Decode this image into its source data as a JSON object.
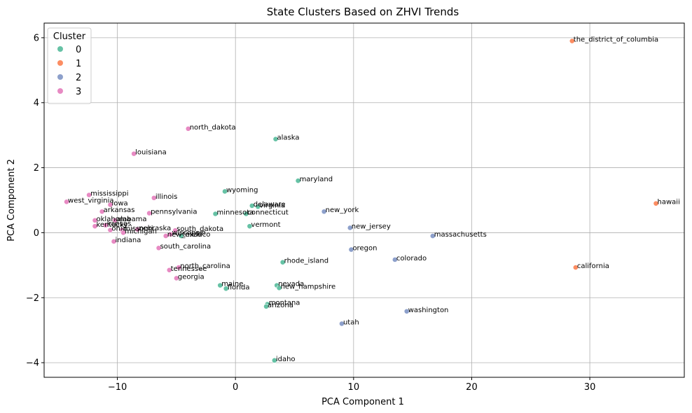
{
  "chart_data": {
    "type": "scatter",
    "title": "State Clusters Based on ZHVI Trends",
    "xlabel": "PCA Component 1",
    "ylabel": "PCA Component 2",
    "xlim": [
      -16.2,
      38.0
    ],
    "ylim": [
      -4.45,
      6.45
    ],
    "xticks": [
      -10,
      0,
      10,
      20,
      30
    ],
    "xtick_labels": [
      "−10",
      "0",
      "10",
      "20",
      "30"
    ],
    "yticks": [
      -4,
      -2,
      0,
      2,
      4,
      6
    ],
    "ytick_labels": [
      "−4",
      "−2",
      "0",
      "2",
      "4",
      "6"
    ],
    "grid": true,
    "legend": {
      "title": "Cluster",
      "placement": "top-left",
      "entries": [
        {
          "label": "0",
          "color": "#66c2a5"
        },
        {
          "label": "1",
          "color": "#fc8d62"
        },
        {
          "label": "2",
          "color": "#8da0cb"
        },
        {
          "label": "3",
          "color": "#e78ac3"
        }
      ]
    },
    "points": [
      {
        "label": "the_district_of_columbia",
        "x": 28.5,
        "y": 5.9,
        "cluster": 1
      },
      {
        "label": "hawaii",
        "x": 35.6,
        "y": 0.9,
        "cluster": 1
      },
      {
        "label": "california",
        "x": 28.8,
        "y": -1.07,
        "cluster": 1
      },
      {
        "label": "north_dakota",
        "x": -4.0,
        "y": 3.2,
        "cluster": 3
      },
      {
        "label": "louisiana",
        "x": -8.6,
        "y": 2.43,
        "cluster": 3
      },
      {
        "label": "mississippi",
        "x": -12.4,
        "y": 1.16,
        "cluster": 3
      },
      {
        "label": "west_virginia",
        "x": -14.3,
        "y": 0.95,
        "cluster": 3
      },
      {
        "label": "illinois",
        "x": -6.9,
        "y": 1.07,
        "cluster": 3
      },
      {
        "label": "iowa",
        "x": -10.6,
        "y": 0.86,
        "cluster": 3
      },
      {
        "label": "arkansas",
        "x": -11.3,
        "y": 0.65,
        "cluster": 3
      },
      {
        "label": "pennsylvania",
        "x": -7.3,
        "y": 0.6,
        "cluster": 3
      },
      {
        "label": "oklahoma",
        "x": -11.9,
        "y": 0.38,
        "cluster": 3
      },
      {
        "label": "alabama",
        "x": -10.2,
        "y": 0.38,
        "cluster": 3
      },
      {
        "label": "kentucky",
        "x": -11.9,
        "y": 0.2,
        "cluster": 3
      },
      {
        "label": "kansas",
        "x": -11.0,
        "y": 0.23,
        "cluster": 3
      },
      {
        "label": "ohio",
        "x": -10.6,
        "y": 0.08,
        "cluster": 3
      },
      {
        "label": "missouri",
        "x": -9.6,
        "y": 0.08,
        "cluster": 3
      },
      {
        "label": "michigan",
        "x": -9.5,
        "y": 0.0,
        "cluster": 3
      },
      {
        "label": "nebraska",
        "x": -8.3,
        "y": 0.1,
        "cluster": 3
      },
      {
        "label": "south_dakota",
        "x": -5.1,
        "y": 0.07,
        "cluster": 3
      },
      {
        "label": "wisconsin",
        "x": -5.5,
        "y": -0.05,
        "cluster": 3
      },
      {
        "label": "new_mexico",
        "x": -5.9,
        "y": -0.1,
        "cluster": 3
      },
      {
        "label": "texas",
        "x": -4.6,
        "y": -0.1,
        "cluster": 0
      },
      {
        "label": "indiana",
        "x": -10.3,
        "y": -0.27,
        "cluster": 3
      },
      {
        "label": "south_carolina",
        "x": -6.5,
        "y": -0.47,
        "cluster": 3
      },
      {
        "label": "north_carolina",
        "x": -4.8,
        "y": -1.07,
        "cluster": 3
      },
      {
        "label": "tennessee",
        "x": -5.6,
        "y": -1.15,
        "cluster": 3
      },
      {
        "label": "georgia",
        "x": -5.0,
        "y": -1.4,
        "cluster": 3
      },
      {
        "label": "alaska",
        "x": 3.4,
        "y": 2.88,
        "cluster": 0
      },
      {
        "label": "maryland",
        "x": 5.3,
        "y": 1.6,
        "cluster": 0
      },
      {
        "label": "wyoming",
        "x": -0.9,
        "y": 1.27,
        "cluster": 0
      },
      {
        "label": "delaware",
        "x": 1.4,
        "y": 0.83,
        "cluster": 0
      },
      {
        "label": "virginia",
        "x": 1.9,
        "y": 0.8,
        "cluster": 0
      },
      {
        "label": "minnesota",
        "x": -1.7,
        "y": 0.58,
        "cluster": 0
      },
      {
        "label": "connecticut",
        "x": 0.9,
        "y": 0.58,
        "cluster": 0
      },
      {
        "label": "vermont",
        "x": 1.2,
        "y": 0.2,
        "cluster": 0
      },
      {
        "label": "rhode_island",
        "x": 4.0,
        "y": -0.91,
        "cluster": 0
      },
      {
        "label": "maine",
        "x": -1.3,
        "y": -1.62,
        "cluster": 0
      },
      {
        "label": "florida",
        "x": -0.8,
        "y": -1.72,
        "cluster": 0
      },
      {
        "label": "nevada",
        "x": 3.5,
        "y": -1.62,
        "cluster": 0
      },
      {
        "label": "new_hampshire",
        "x": 3.7,
        "y": -1.7,
        "cluster": 0
      },
      {
        "label": "montana",
        "x": 2.7,
        "y": -2.2,
        "cluster": 0
      },
      {
        "label": "arizona",
        "x": 2.6,
        "y": -2.27,
        "cluster": 0
      },
      {
        "label": "idaho",
        "x": 3.3,
        "y": -3.93,
        "cluster": 0
      },
      {
        "label": "new_york",
        "x": 7.5,
        "y": 0.65,
        "cluster": 2
      },
      {
        "label": "new_jersey",
        "x": 9.7,
        "y": 0.15,
        "cluster": 2
      },
      {
        "label": "massachusetts",
        "x": 16.7,
        "y": -0.1,
        "cluster": 2
      },
      {
        "label": "oregon",
        "x": 9.8,
        "y": -0.52,
        "cluster": 2
      },
      {
        "label": "colorado",
        "x": 13.5,
        "y": -0.83,
        "cluster": 2
      },
      {
        "label": "washington",
        "x": 14.5,
        "y": -2.42,
        "cluster": 2
      },
      {
        "label": "utah",
        "x": 9.0,
        "y": -2.8,
        "cluster": 2
      }
    ]
  }
}
